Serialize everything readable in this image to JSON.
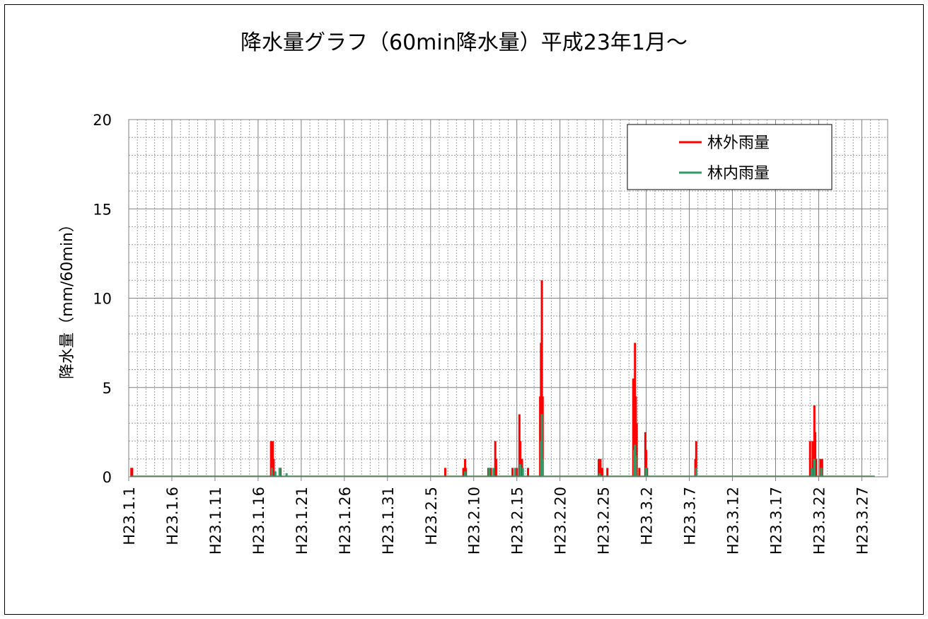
{
  "chart_data": {
    "type": "bar",
    "title": "降水量グラフ（60min降水量）平成23年1月～",
    "ylabel": "降水量（mm/60min）",
    "xlabel": "",
    "ylim": [
      0,
      20
    ],
    "y_ticks": [
      "0",
      "5",
      "10",
      "15",
      "20"
    ],
    "x_range_days": [
      0,
      88
    ],
    "x_tick_labels": [
      "H23.1.1",
      "H23.1.6",
      "H23.1.11",
      "H23.1.16",
      "H23.1.21",
      "H23.1.26",
      "H23.1.31",
      "H23.2.5",
      "H23.2.10",
      "H23.2.15",
      "H23.2.20",
      "H23.2.25",
      "H23.3.2",
      "H23.3.7",
      "H23.3.12",
      "H23.3.17",
      "H23.3.22",
      "H23.3.27"
    ],
    "grid": true,
    "legend_position": "top-right",
    "series": [
      {
        "name": "林外雨量",
        "color": "#ff0000",
        "points": [
          [
            0.3,
            0.5
          ],
          [
            0.4,
            0.5
          ],
          [
            16.5,
            2.0
          ],
          [
            16.6,
            2.0
          ],
          [
            16.7,
            2.0
          ],
          [
            16.8,
            1.0
          ],
          [
            17.5,
            0.5
          ],
          [
            17.6,
            0.5
          ],
          [
            36.7,
            0.5
          ],
          [
            38.8,
            0.5
          ],
          [
            39.0,
            1.0
          ],
          [
            39.1,
            0.5
          ],
          [
            41.7,
            0.5
          ],
          [
            41.8,
            0.5
          ],
          [
            42.0,
            0.5
          ],
          [
            42.5,
            2.0
          ],
          [
            42.6,
            1.0
          ],
          [
            44.5,
            0.5
          ],
          [
            45.0,
            0.5
          ],
          [
            45.3,
            3.5
          ],
          [
            45.4,
            2.0
          ],
          [
            45.6,
            1.0
          ],
          [
            46.3,
            0.5
          ],
          [
            47.7,
            4.5
          ],
          [
            47.8,
            7.5
          ],
          [
            47.9,
            11.0
          ],
          [
            48.0,
            4.5
          ],
          [
            54.5,
            1.0
          ],
          [
            54.7,
            1.0
          ],
          [
            54.9,
            0.5
          ],
          [
            55.5,
            0.5
          ],
          [
            58.5,
            5.5
          ],
          [
            58.6,
            4.0
          ],
          [
            58.7,
            7.5
          ],
          [
            58.8,
            4.5
          ],
          [
            58.9,
            3.0
          ],
          [
            59.2,
            0.5
          ],
          [
            59.9,
            2.5
          ],
          [
            60.0,
            1.5
          ],
          [
            60.1,
            0.5
          ],
          [
            65.7,
            1.0
          ],
          [
            65.8,
            2.0
          ],
          [
            79.0,
            2.0
          ],
          [
            79.3,
            2.0
          ],
          [
            79.5,
            4.0
          ],
          [
            79.6,
            2.5
          ],
          [
            79.7,
            1.0
          ],
          [
            80.2,
            1.0
          ],
          [
            80.4,
            1.0
          ]
        ]
      },
      {
        "name": "林内雨量",
        "color": "#339966",
        "points": [
          [
            16.6,
            0.5
          ],
          [
            17.0,
            0.3
          ],
          [
            17.5,
            0.5
          ],
          [
            18.3,
            0.2
          ],
          [
            39.0,
            0.3
          ],
          [
            41.8,
            0.5
          ],
          [
            42.3,
            0.5
          ],
          [
            44.8,
            0.5
          ],
          [
            45.4,
            0.7
          ],
          [
            45.7,
            0.5
          ],
          [
            47.8,
            2.0
          ],
          [
            47.9,
            3.5
          ],
          [
            48.0,
            1.0
          ],
          [
            54.6,
            0.2
          ],
          [
            58.6,
            1.5
          ],
          [
            58.7,
            1.8
          ],
          [
            58.8,
            1.2
          ],
          [
            60.0,
            0.5
          ],
          [
            65.8,
            0.5
          ],
          [
            79.2,
            0.5
          ],
          [
            79.5,
            1.0
          ],
          [
            80.3,
            0.5
          ]
        ]
      }
    ]
  }
}
